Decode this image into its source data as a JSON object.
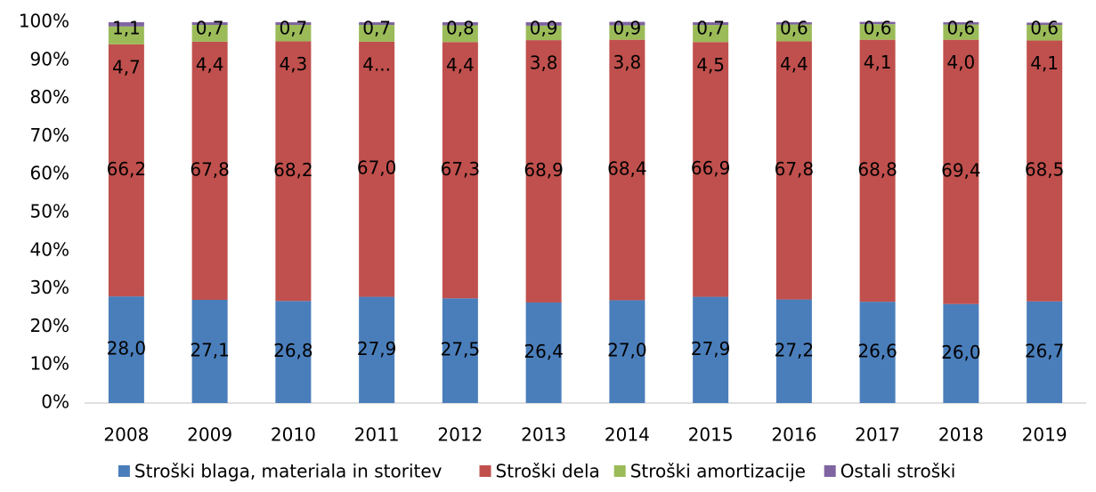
{
  "chart_data": {
    "type": "stacked_bar",
    "categories": [
      "2008",
      "2009",
      "2010",
      "2011",
      "2012",
      "2013",
      "2014",
      "2015",
      "2016",
      "2017",
      "2018",
      "2019"
    ],
    "series": [
      {
        "name": "Stroški blaga, materiala in storitev",
        "color": "#4a7ebb",
        "values": [
          28.0,
          27.1,
          26.8,
          27.9,
          27.5,
          26.4,
          27.0,
          27.9,
          27.2,
          26.6,
          26.0,
          26.7
        ],
        "value_labels": [
          "28,0",
          "27,1",
          "26,8",
          "27,9",
          "27,5",
          "26,4",
          "27,0",
          "27,9",
          "27,2",
          "26,6",
          "26,0",
          "26,7"
        ]
      },
      {
        "name": "Stroški dela",
        "color": "#c0504d",
        "values": [
          66.2,
          67.8,
          68.2,
          67.0,
          67.3,
          68.9,
          68.4,
          66.9,
          67.8,
          68.8,
          69.4,
          68.5
        ],
        "value_labels": [
          "66,2",
          "67,8",
          "68,2",
          "67,0",
          "67,3",
          "68,9",
          "68,4",
          "66,9",
          "67,8",
          "68,8",
          "69,4",
          "68,5"
        ]
      },
      {
        "name": "Stroški amortizacije",
        "color": "#9bbb59",
        "values": [
          4.7,
          4.4,
          4.3,
          4.4,
          4.4,
          3.8,
          3.8,
          4.5,
          4.4,
          4.1,
          4.0,
          4.1
        ],
        "value_labels": [
          "4,7",
          "4,4",
          "4,3",
          "4...",
          "4,4",
          "3,8",
          "3,8",
          "4,5",
          "4,4",
          "4,1",
          "4,0",
          "4,1"
        ]
      },
      {
        "name": "Ostali stroški",
        "color": "#8064a2",
        "values": [
          1.1,
          0.7,
          0.7,
          0.7,
          0.8,
          0.9,
          0.9,
          0.7,
          0.6,
          0.6,
          0.6,
          0.6
        ],
        "value_labels": [
          "1,1",
          "0,7",
          "0,7",
          "0,7",
          "0,8",
          "0,9",
          "0,9",
          "0,7",
          "0,6",
          "0,6",
          "0,6",
          "0,6"
        ]
      }
    ],
    "ylim": [
      0,
      100
    ],
    "yticks": [
      {
        "value": 0,
        "label": "0%"
      },
      {
        "value": 10,
        "label": "10%"
      },
      {
        "value": 20,
        "label": "20%"
      },
      {
        "value": 30,
        "label": "30%"
      },
      {
        "value": 40,
        "label": "40%"
      },
      {
        "value": 50,
        "label": "50%"
      },
      {
        "value": 60,
        "label": "60%"
      },
      {
        "value": 70,
        "label": "70%"
      },
      {
        "value": 80,
        "label": "80%"
      },
      {
        "value": 90,
        "label": "90%"
      },
      {
        "value": 100,
        "label": "100%"
      }
    ],
    "legend": "bottom"
  }
}
